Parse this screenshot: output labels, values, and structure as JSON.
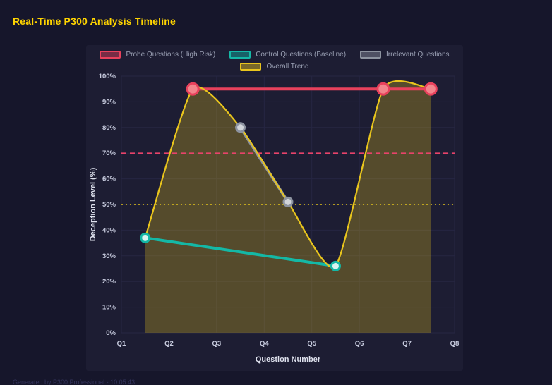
{
  "header": {
    "title": "Real-Time P300 Analysis Timeline"
  },
  "footer": {
    "text": "Generated by P300 Professional - 10:05:43"
  },
  "chart_data": {
    "type": "line",
    "title": "Real-Time P300 Analysis Timeline",
    "xlabel": "Question Number",
    "ylabel": "Deception Level (%)",
    "x_ticks": [
      "Q1",
      "Q2",
      "Q3",
      "Q4",
      "Q5",
      "Q6",
      "Q7",
      "Q8"
    ],
    "x_range": [
      1,
      8
    ],
    "ylim": [
      0,
      100
    ],
    "y_tick_step": 10,
    "y_tick_suffix": "%",
    "grid": true,
    "legend_position": "top",
    "series": [
      {
        "name": "Probe Questions (High Risk)",
        "color": "#e8415c",
        "point_fill": "#f2858c",
        "point_radius": 8,
        "line_width": 4,
        "points": [
          {
            "x": 2.5,
            "y": 95
          },
          {
            "x": 6.5,
            "y": 95
          },
          {
            "x": 7.5,
            "y": 95
          }
        ]
      },
      {
        "name": "Control Questions (Baseline)",
        "color": "#14b8a6",
        "point_fill": "#d9f4f0",
        "point_radius": 6,
        "line_width": 4,
        "points": [
          {
            "x": 1.5,
            "y": 37
          },
          {
            "x": 5.5,
            "y": 26
          }
        ]
      },
      {
        "name": "Irrelevant Questions",
        "color": "#8d93a0",
        "point_fill": "#d2d5da",
        "point_radius": 6,
        "line_width": 4,
        "points": [
          {
            "x": 3.5,
            "y": 80
          },
          {
            "x": 4.5,
            "y": 51
          }
        ]
      },
      {
        "name": "Overall Trend",
        "color": "#e9c51d",
        "smooth": true,
        "fill": true,
        "fill_opacity": 0.28,
        "show_points": false,
        "line_width": 2.25,
        "points": [
          {
            "x": 1.5,
            "y": 37
          },
          {
            "x": 2.5,
            "y": 95
          },
          {
            "x": 3.5,
            "y": 80
          },
          {
            "x": 4.5,
            "y": 51
          },
          {
            "x": 5.5,
            "y": 26
          },
          {
            "x": 6.5,
            "y": 95
          },
          {
            "x": 7.5,
            "y": 95
          }
        ]
      }
    ],
    "thresholds": [
      {
        "value": 70,
        "color": "#e8436a",
        "style": "dashed"
      },
      {
        "value": 50,
        "color": "#e3c419",
        "style": "dotted"
      }
    ]
  },
  "colors": {
    "background": "#16162b",
    "panel": "#1d1d33",
    "grid": "#262643",
    "title": "#ffd400",
    "axis_text": "#c9cde0"
  }
}
